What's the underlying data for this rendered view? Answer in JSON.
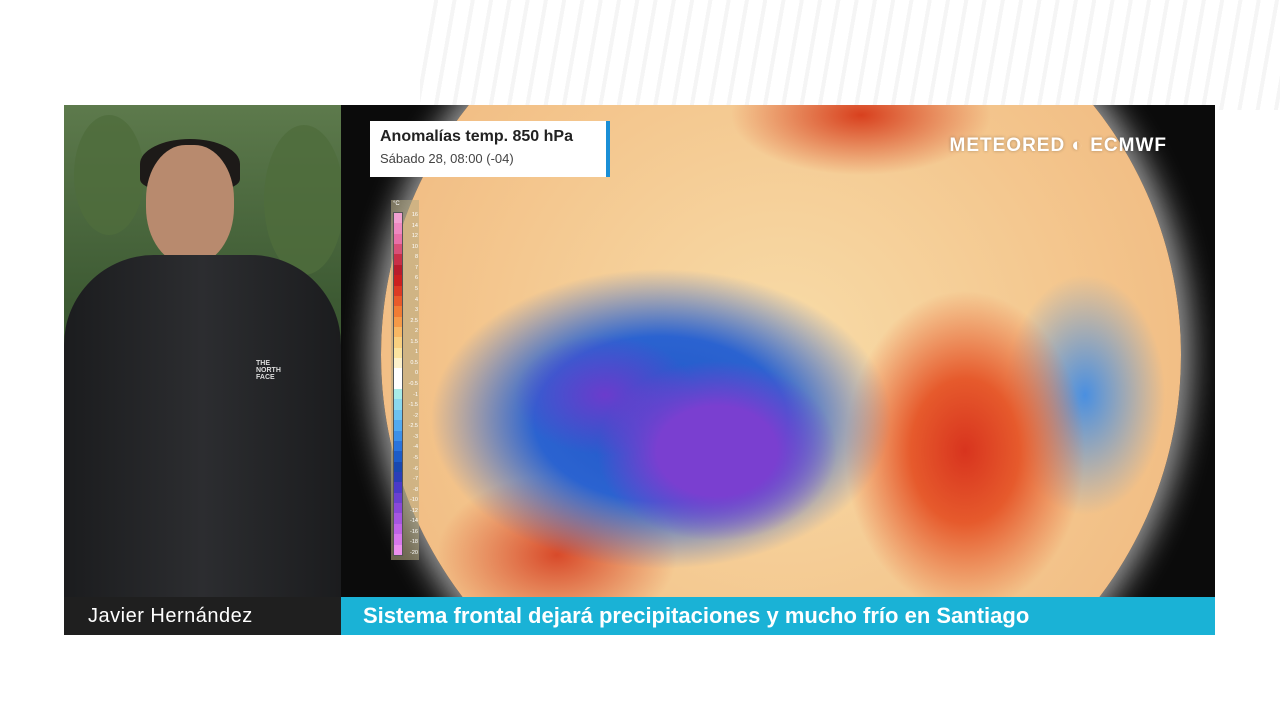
{
  "presenter": {
    "name": "Javier Hernández",
    "jacket_logo": "THE NORTH FACE"
  },
  "map": {
    "title": "Anomalías temp. 850 hPa",
    "subtitle": "Sábado 28, 08:00 (-04)",
    "brand": "METEORED · ECMWF",
    "accent": "#1a8fd6",
    "legend": {
      "unit": "°C",
      "labels": [
        "16",
        "14",
        "12",
        "10",
        "8",
        "7",
        "6",
        "5",
        "4",
        "3",
        "2.5",
        "2",
        "1.5",
        "1",
        "0.5",
        "0",
        "-0.5",
        "-1",
        "-1.5",
        "-2",
        "-2.5",
        "-3",
        "-4",
        "-5",
        "-6",
        "-7",
        "-8",
        "-10",
        "-12",
        "-14",
        "-16",
        "-18",
        "-20"
      ],
      "colors": [
        "#f2a0d0",
        "#ee88c0",
        "#e870a8",
        "#d85078",
        "#c83048",
        "#b81c2c",
        "#cc2020",
        "#dc3a24",
        "#e85a2a",
        "#f07c34",
        "#f59a48",
        "#f8b864",
        "#f9d080",
        "#fbe4a0",
        "#fdf2cc",
        "#ffffff",
        "#ffffff",
        "#a8ece8",
        "#8ad8ee",
        "#6cc2f0",
        "#52aaf0",
        "#3c90e8",
        "#2a74dc",
        "#1c5cc8",
        "#1848b0",
        "#2a3eb8",
        "#4a3ac8",
        "#6a40d0",
        "#8a48d8",
        "#a656e0",
        "#c064e6",
        "#d878ec",
        "#ec90ee"
      ]
    }
  },
  "headline": "Sistema frontal dejará precipitaciones y mucho frío en Santiago"
}
